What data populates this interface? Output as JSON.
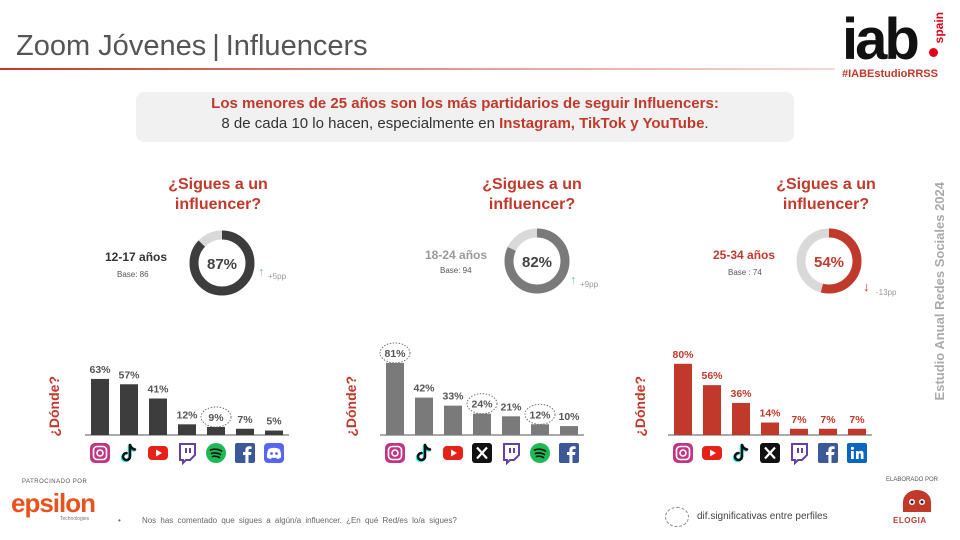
{
  "header": {
    "title_main": "Zoom Jóvenes",
    "title_sep": "|",
    "title_sub": "Influencers",
    "logo_text": "iab",
    "logo_suffix": "spain",
    "hashtag": "#IABEstudioRRSS"
  },
  "summary": {
    "line1": "Los menores de 25 años son los más partidarios de seguir Influencers:",
    "line2_pre": "8 de cada 10 lo hacen, especialmente en ",
    "line2_hl": "Instagram, TikTok y YouTube",
    "line2_end": "."
  },
  "side_label": "Estudio Anual Redes Sociales 2024",
  "donde_label": "¿Dónde?",
  "colors": {
    "accent": "#c0392b",
    "dark": "#3d3d3d",
    "mid": "#7a7a7a",
    "ring_bg": "#d9d9d9"
  },
  "chart_data": [
    {
      "type": "pie",
      "title": "¿Sigues a un influencer?",
      "group": "12-17  años",
      "base": "Base: 86",
      "value": 87,
      "label": "87%",
      "delta": "+5pp",
      "delta_direction": "up",
      "color": "#3d3d3d"
    },
    {
      "type": "pie",
      "title": "¿Sigues a un influencer?",
      "group": "18-24  años",
      "base": "Base: 94",
      "value": 82,
      "label": "82%",
      "delta": "+9pp",
      "delta_direction": "up",
      "color": "#7a7a7a"
    },
    {
      "type": "pie",
      "title": "¿Sigues a un influencer?",
      "group": "25-34  años",
      "base": "Base : 74",
      "value": 54,
      "label": "54%",
      "delta": "-13pp",
      "delta_direction": "down",
      "color": "#c0392b"
    },
    {
      "type": "bar",
      "ylabel": "¿Dónde?",
      "group": "12-17  años",
      "color": "#3d3d3d",
      "categories": [
        "Instagram",
        "TikTok",
        "YouTube",
        "Twitch",
        "Spotify",
        "Facebook",
        "Discord"
      ],
      "values": [
        63,
        57,
        41,
        12,
        9,
        7,
        5
      ],
      "labels": [
        "63%",
        "57%",
        "41%",
        "12%",
        "9%",
        "7%",
        "5%"
      ],
      "significant": [
        false,
        false,
        false,
        false,
        true,
        false,
        false
      ],
      "ylim": [
        0,
        85
      ]
    },
    {
      "type": "bar",
      "ylabel": "¿Dónde?",
      "group": "18-24  años",
      "color": "#7a7a7a",
      "categories": [
        "Instagram",
        "TikTok",
        "YouTube",
        "X",
        "Twitch",
        "Spotify",
        "Facebook"
      ],
      "values": [
        81,
        42,
        33,
        24,
        21,
        12,
        10
      ],
      "labels": [
        "81%",
        "42%",
        "33%",
        "24%",
        "21%",
        "12%",
        "10%"
      ],
      "significant": [
        true,
        false,
        false,
        true,
        false,
        true,
        false
      ],
      "ylim": [
        0,
        85
      ]
    },
    {
      "type": "bar",
      "ylabel": "¿Dónde?",
      "group": "25-34  años",
      "color": "#c0392b",
      "categories": [
        "Instagram",
        "YouTube",
        "TikTok",
        "X",
        "Twitch",
        "Facebook",
        "LinkedIn"
      ],
      "values": [
        80,
        56,
        36,
        14,
        7,
        7,
        7
      ],
      "labels": [
        "80%",
        "56%",
        "36%",
        "14%",
        "7%",
        "7%",
        "7%"
      ],
      "significant": [
        false,
        false,
        false,
        false,
        false,
        false,
        false
      ],
      "ylim": [
        0,
        85
      ]
    }
  ],
  "legend_text": "dif.significativas entre perfiles",
  "footnote": "Nos has comentado que sigues a algún/a influencer. ¿En qué Red/es lo/a sigues?",
  "footnote_bullet": "•",
  "sponsor_label": "PATROCINADO POR",
  "sponsor_name": "epsilon",
  "sponsor_sub": "Technologies",
  "made_by_label": "ELABORADO POR",
  "made_by_name": "ELOGIA"
}
